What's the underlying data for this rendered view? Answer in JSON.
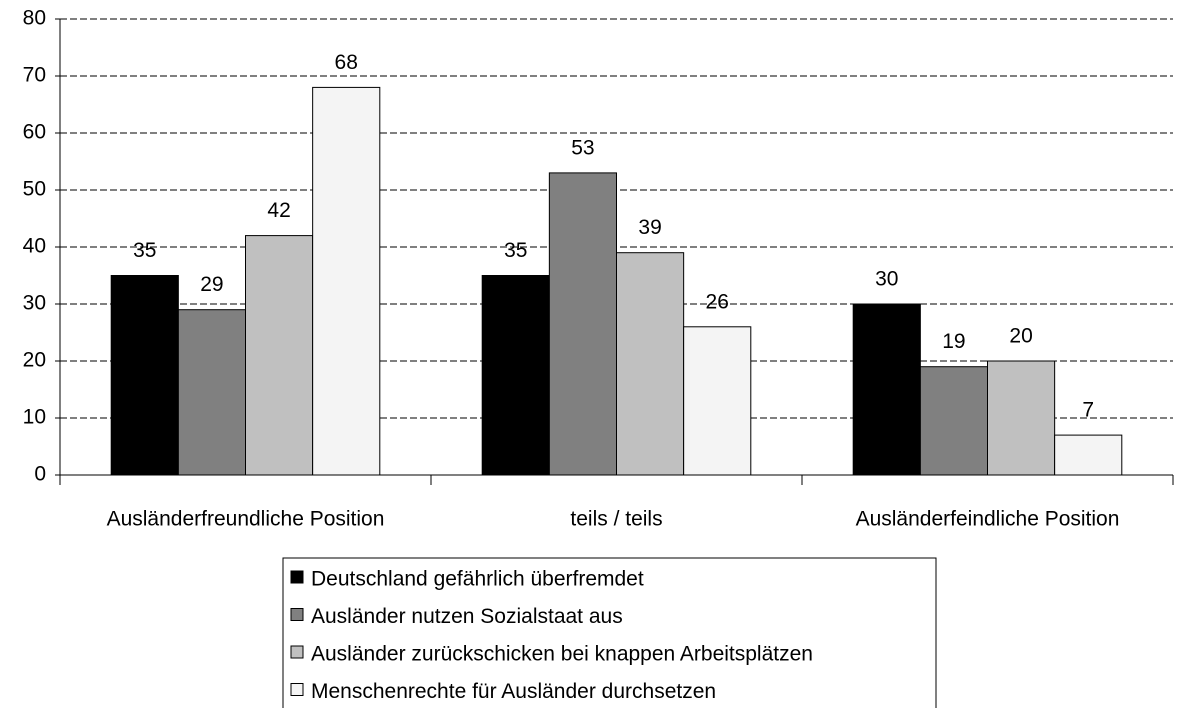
{
  "chart_data": {
    "type": "bar",
    "categories": [
      "Ausländerfreundliche Position",
      "teils / teils",
      "Ausländerfeindliche Position"
    ],
    "series": [
      {
        "name": "Deutschland gefährlich überfremdet",
        "color": "#000000",
        "values": [
          35,
          35,
          30
        ]
      },
      {
        "name": "Ausländer nutzen Sozialstaat aus",
        "color": "#808080",
        "values": [
          29,
          53,
          19
        ]
      },
      {
        "name": "Ausländer zurückschicken bei knappen Arbeitsplätzen",
        "color": "#c0c0c0",
        "values": [
          42,
          39,
          20
        ]
      },
      {
        "name": "Menschenrechte für Ausländer durchsetzen",
        "color": "#f4f4f4",
        "values": [
          68,
          26,
          7
        ]
      }
    ],
    "ylim": [
      0,
      80
    ],
    "yticks": [
      0,
      10,
      20,
      30,
      40,
      50,
      60,
      70,
      80
    ],
    "grid": true,
    "legend": "bottom"
  }
}
